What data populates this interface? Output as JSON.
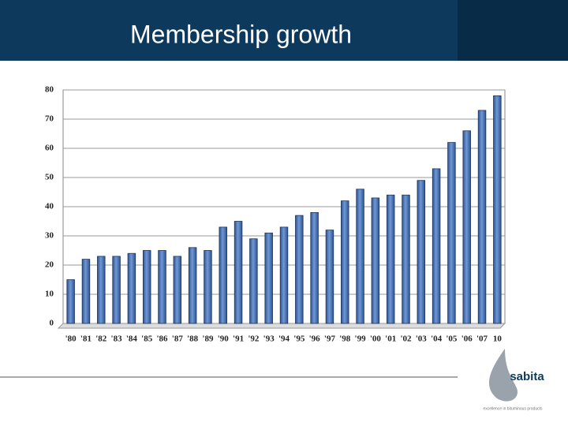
{
  "chart_data": {
    "type": "bar",
    "title": "Membership growth",
    "categories": [
      "'80",
      "'81",
      "'82",
      "'83",
      "'84",
      "'85",
      "'86",
      "'87",
      "'88",
      "'89",
      "'90",
      "'91",
      "'92",
      "'93",
      "'94",
      "'95",
      "'96",
      "'97",
      "'98",
      "'99",
      "'00",
      "'01",
      "'02",
      "'03",
      "'04",
      "'05",
      "'06",
      "'07",
      "10"
    ],
    "values": [
      15,
      22,
      23,
      23,
      24,
      25,
      25,
      23,
      26,
      25,
      33,
      35,
      29,
      31,
      33,
      37,
      38,
      32,
      42,
      46,
      43,
      44,
      44,
      49,
      53,
      62,
      66,
      73,
      78
    ],
    "color": "#4a72b0",
    "ylim": [
      0,
      80
    ],
    "yticks": [
      0,
      10,
      20,
      30,
      40,
      50,
      60,
      70,
      80
    ],
    "grid": true
  },
  "logo": {
    "name": "sabita",
    "tagline": "excellence in bituminous products"
  }
}
